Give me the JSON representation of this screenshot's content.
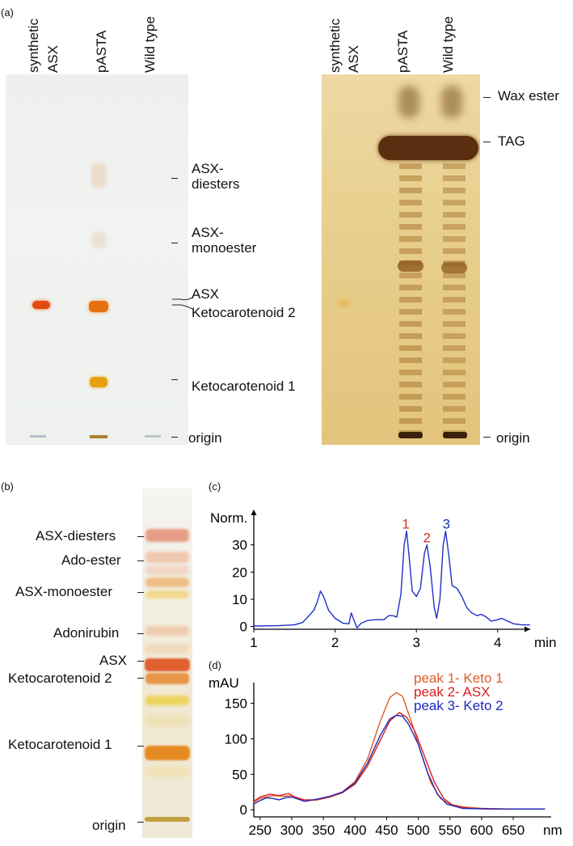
{
  "panels": {
    "a": "(a)",
    "b": "(b)",
    "c": "(c)",
    "d": "(d)"
  },
  "panel_a_left": {
    "lanes": [
      "synthetic\nASX",
      "pASTA",
      "Wild type"
    ],
    "lane_synthetic_1": "synthetic",
    "lane_synthetic_2": "ASX",
    "lane_pasta": "pASTA",
    "lane_wildtype": "Wild type",
    "labels": {
      "asx_diesters_1": "ASX-",
      "asx_diesters_2": "diesters",
      "asx_monoester_1": "ASX-",
      "asx_monoester_2": "monoester",
      "asx": "ASX",
      "keto2": "Ketocarotenoid 2",
      "keto1": "Ketocarotenoid 1",
      "origin": "origin"
    }
  },
  "panel_a_right": {
    "lane_synthetic_1": "synthetic",
    "lane_synthetic_2": "ASX",
    "lane_pasta": "pASTA",
    "lane_wildtype": "Wild type",
    "labels": {
      "wax_ester": "Wax ester",
      "tag": "TAG",
      "origin": "origin"
    }
  },
  "panel_b": {
    "labels": {
      "asx_diesters": "ASX-diesters",
      "ado_ester": "Ado-ester",
      "asx_monoester": "ASX-monoester",
      "adonirubin": "Adonirubin",
      "asx": "ASX",
      "keto2": "Ketocarotenoid 2",
      "keto1": "Ketocarotenoid 1",
      "origin": "origin"
    }
  },
  "chart_data": [
    {
      "type": "line",
      "panel": "c",
      "ylabel": "Norm.",
      "xlabel": "min",
      "xlim": [
        1,
        4.4
      ],
      "ylim": [
        -1,
        40
      ],
      "x_ticks": [
        "1",
        "2",
        "3",
        "4"
      ],
      "y_ticks": [
        "0",
        "10",
        "20",
        "30"
      ],
      "peak_labels": [
        {
          "text": "1",
          "x": 2.87,
          "y": 36,
          "color": "#d03020"
        },
        {
          "text": "2",
          "x": 3.13,
          "y": 31,
          "color": "#d03020"
        },
        {
          "text": "3",
          "x": 3.37,
          "y": 36,
          "color": "#2030c0"
        }
      ],
      "series": [
        {
          "color": "#2030c8",
          "points": [
            [
              1.0,
              0.2
            ],
            [
              1.3,
              0.3
            ],
            [
              1.5,
              0.6
            ],
            [
              1.6,
              1.5
            ],
            [
              1.68,
              4
            ],
            [
              1.74,
              6
            ],
            [
              1.78,
              9
            ],
            [
              1.82,
              13
            ],
            [
              1.86,
              11
            ],
            [
              1.92,
              6
            ],
            [
              2.0,
              3
            ],
            [
              2.1,
              1.2
            ],
            [
              2.17,
              1
            ],
            [
              2.2,
              5
            ],
            [
              2.23,
              2.5
            ],
            [
              2.27,
              -0.5
            ],
            [
              2.32,
              1.2
            ],
            [
              2.4,
              2.2
            ],
            [
              2.5,
              2.5
            ],
            [
              2.6,
              2.5
            ],
            [
              2.66,
              4
            ],
            [
              2.71,
              4
            ],
            [
              2.76,
              3.5
            ],
            [
              2.81,
              12
            ],
            [
              2.85,
              30
            ],
            [
              2.88,
              35
            ],
            [
              2.91,
              26
            ],
            [
              2.95,
              13
            ],
            [
              3.0,
              11
            ],
            [
              3.05,
              14
            ],
            [
              3.1,
              27
            ],
            [
              3.13,
              30
            ],
            [
              3.17,
              22
            ],
            [
              3.22,
              7
            ],
            [
              3.25,
              3
            ],
            [
              3.29,
              10
            ],
            [
              3.33,
              30
            ],
            [
              3.36,
              35
            ],
            [
              3.4,
              26
            ],
            [
              3.44,
              15
            ],
            [
              3.5,
              14
            ],
            [
              3.56,
              11
            ],
            [
              3.62,
              7
            ],
            [
              3.68,
              5
            ],
            [
              3.75,
              4
            ],
            [
              3.8,
              4.5
            ],
            [
              3.86,
              3.5
            ],
            [
              3.92,
              2
            ],
            [
              4.0,
              2.5
            ],
            [
              4.05,
              3
            ],
            [
              4.12,
              2
            ],
            [
              4.2,
              1
            ],
            [
              4.3,
              0.6
            ],
            [
              4.4,
              0.6
            ]
          ]
        }
      ]
    },
    {
      "type": "line",
      "panel": "d",
      "ylabel": "mAU",
      "xlabel": "nm",
      "xlim": [
        240,
        710
      ],
      "ylim": [
        -10,
        170
      ],
      "x_ticks": [
        "250",
        "300",
        "350",
        "400",
        "450",
        "500",
        "550",
        "600",
        "650"
      ],
      "y_ticks": [
        "0",
        "50",
        "100",
        "150"
      ],
      "legend": [
        "peak 1- Keto 1",
        "peak 2- ASX",
        "peak 3- Keto 2"
      ],
      "series": [
        {
          "name": "peak 1- Keto 1",
          "color": "#e05a28",
          "points": [
            [
              240,
              10
            ],
            [
              250,
              16
            ],
            [
              270,
              20
            ],
            [
              290,
              19
            ],
            [
              300,
              20
            ],
            [
              310,
              16
            ],
            [
              320,
              12
            ],
            [
              340,
              14
            ],
            [
              360,
              18
            ],
            [
              380,
              25
            ],
            [
              400,
              40
            ],
            [
              420,
              72
            ],
            [
              440,
              125
            ],
            [
              455,
              158
            ],
            [
              465,
              165
            ],
            [
              475,
              160
            ],
            [
              490,
              122
            ],
            [
              505,
              78
            ],
            [
              520,
              38
            ],
            [
              535,
              16
            ],
            [
              550,
              8
            ],
            [
              570,
              4
            ],
            [
              600,
              2
            ],
            [
              650,
              1
            ],
            [
              700,
              1
            ]
          ]
        },
        {
          "name": "peak 2- ASX",
          "color": "#d82020",
          "points": [
            [
              240,
              12
            ],
            [
              250,
              18
            ],
            [
              265,
              22
            ],
            [
              280,
              20
            ],
            [
              295,
              23
            ],
            [
              305,
              18
            ],
            [
              320,
              14
            ],
            [
              340,
              14
            ],
            [
              360,
              18
            ],
            [
              380,
              24
            ],
            [
              400,
              36
            ],
            [
              420,
              62
            ],
            [
              440,
              98
            ],
            [
              455,
              125
            ],
            [
              470,
              137
            ],
            [
              482,
              130
            ],
            [
              495,
              110
            ],
            [
              510,
              75
            ],
            [
              525,
              40
            ],
            [
              540,
              16
            ],
            [
              555,
              6
            ],
            [
              580,
              2
            ],
            [
              620,
              1
            ],
            [
              700,
              1
            ]
          ]
        },
        {
          "name": "peak 3- Keto 2",
          "color": "#2028c0",
          "points": [
            [
              240,
              8
            ],
            [
              250,
              13
            ],
            [
              260,
              17
            ],
            [
              270,
              16
            ],
            [
              280,
              14
            ],
            [
              290,
              17
            ],
            [
              300,
              18
            ],
            [
              310,
              15
            ],
            [
              320,
              12
            ],
            [
              340,
              15
            ],
            [
              360,
              19
            ],
            [
              380,
              25
            ],
            [
              400,
              38
            ],
            [
              420,
              66
            ],
            [
              440,
              105
            ],
            [
              455,
              128
            ],
            [
              465,
              133
            ],
            [
              475,
              132
            ],
            [
              485,
              120
            ],
            [
              500,
              92
            ],
            [
              515,
              52
            ],
            [
              530,
              22
            ],
            [
              545,
              8
            ],
            [
              570,
              2
            ],
            [
              620,
              1
            ],
            [
              700,
              1
            ]
          ]
        }
      ]
    }
  ]
}
